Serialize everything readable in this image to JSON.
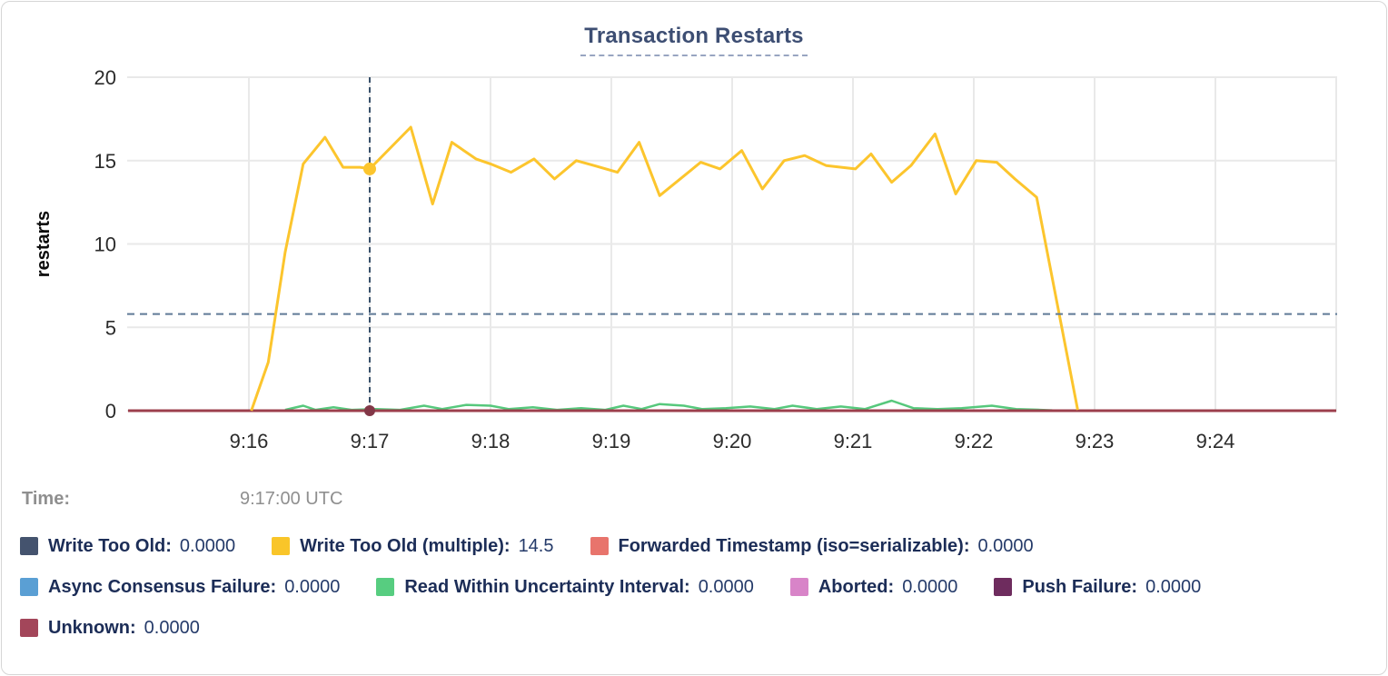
{
  "title": "Transaction Restarts",
  "tooltip": {
    "time_label": "Time:",
    "time_value": "9:17:00 UTC"
  },
  "chart_data": {
    "type": "line",
    "title": "Transaction Restarts",
    "xlabel": "",
    "ylabel": "restarts",
    "x_unit_note": "x values are minutes after 9:00 UTC",
    "xlim": [
      15,
      25
    ],
    "ylim": [
      0,
      20
    ],
    "grid": true,
    "y_ticks": [
      0,
      5,
      10,
      15,
      20
    ],
    "x_gridlines": [
      16,
      17,
      18,
      19,
      20,
      21,
      22,
      23,
      24,
      25
    ],
    "x_ticks": [
      {
        "t": 16,
        "label": "9:16"
      },
      {
        "t": 17,
        "label": "9:17"
      },
      {
        "t": 18,
        "label": "9:18"
      },
      {
        "t": 19,
        "label": "9:19"
      },
      {
        "t": 20,
        "label": "9:20"
      },
      {
        "t": 21,
        "label": "9:21"
      },
      {
        "t": 22,
        "label": "9:22"
      },
      {
        "t": 23,
        "label": "9:23"
      },
      {
        "t": 24,
        "label": "9:24"
      }
    ],
    "average_line": {
      "value": 5.8,
      "color": "#5f7a96",
      "style": "dashed"
    },
    "crosshair": {
      "t": 17,
      "time": "9:17:00 UTC",
      "color": "#38506a"
    },
    "highlighted_points": [
      {
        "series": "Write Too Old (multiple)",
        "t": 17,
        "value": 14.5,
        "color": "#fcc52d",
        "r": 7
      },
      {
        "series": "Unknown",
        "t": 17,
        "value": 0,
        "color": "#823747",
        "r": 6
      }
    ],
    "series": [
      {
        "name": "Write Too Old",
        "color": "#44536e",
        "width": 2,
        "value_at_crosshair": "0.0000",
        "points": [
          [
            15.0,
            0
          ],
          [
            25.0,
            0
          ]
        ]
      },
      {
        "name": "Forwarded Timestamp (iso=serializable)",
        "color": "#e8746c",
        "width": 2,
        "value_at_crosshair": "0.0000",
        "points": [
          [
            15.0,
            0
          ],
          [
            25.0,
            0
          ]
        ]
      },
      {
        "name": "Async Consensus Failure",
        "color": "#5a9fd4",
        "width": 2,
        "value_at_crosshair": "0.0000",
        "points": [
          [
            15.0,
            0
          ],
          [
            25.0,
            0
          ]
        ]
      },
      {
        "name": "Aborted",
        "color": "#d884c8",
        "width": 2,
        "value_at_crosshair": "0.0000",
        "points": [
          [
            15.0,
            0
          ],
          [
            25.0,
            0
          ]
        ]
      },
      {
        "name": "Push Failure",
        "color": "#6e2c5e",
        "width": 2,
        "value_at_crosshair": "0.0000",
        "points": [
          [
            15.0,
            0
          ],
          [
            25.0,
            0
          ]
        ]
      },
      {
        "name": "Read Within Uncertainty Interval",
        "color": "#56c87c",
        "width": 2.5,
        "value_at_crosshair": "0.0000",
        "points": [
          [
            16.3,
            0.05
          ],
          [
            16.45,
            0.3
          ],
          [
            16.55,
            0.05
          ],
          [
            16.7,
            0.2
          ],
          [
            16.85,
            0.05
          ],
          [
            17.05,
            0.1
          ],
          [
            17.25,
            0.05
          ],
          [
            17.45,
            0.3
          ],
          [
            17.6,
            0.1
          ],
          [
            17.8,
            0.35
          ],
          [
            18.0,
            0.3
          ],
          [
            18.15,
            0.1
          ],
          [
            18.35,
            0.2
          ],
          [
            18.55,
            0.05
          ],
          [
            18.75,
            0.15
          ],
          [
            18.95,
            0.05
          ],
          [
            19.1,
            0.3
          ],
          [
            19.25,
            0.1
          ],
          [
            19.4,
            0.4
          ],
          [
            19.6,
            0.3
          ],
          [
            19.75,
            0.1
          ],
          [
            19.95,
            0.15
          ],
          [
            20.15,
            0.25
          ],
          [
            20.35,
            0.1
          ],
          [
            20.5,
            0.3
          ],
          [
            20.7,
            0.1
          ],
          [
            20.9,
            0.25
          ],
          [
            21.1,
            0.1
          ],
          [
            21.32,
            0.6
          ],
          [
            21.5,
            0.15
          ],
          [
            21.7,
            0.1
          ],
          [
            21.9,
            0.15
          ],
          [
            22.15,
            0.3
          ],
          [
            22.35,
            0.1
          ],
          [
            22.55,
            0.05
          ],
          [
            22.65,
            0.02
          ]
        ]
      },
      {
        "name": "Unknown",
        "color": "#9c3f4c",
        "width": 3,
        "value_at_crosshair": "0.0000",
        "points": [
          [
            15.0,
            0
          ],
          [
            25.0,
            0
          ]
        ]
      },
      {
        "name": "Write Too Old (multiple)",
        "color": "#fcc52d",
        "width": 3,
        "value_at_crosshair": "14.5",
        "points": [
          [
            16.02,
            0
          ],
          [
            16.16,
            2.9
          ],
          [
            16.3,
            9.5
          ],
          [
            16.45,
            14.8
          ],
          [
            16.63,
            16.4
          ],
          [
            16.78,
            14.6
          ],
          [
            16.92,
            14.6
          ],
          [
            17.0,
            14.5
          ],
          [
            17.34,
            17.0
          ],
          [
            17.52,
            12.4
          ],
          [
            17.68,
            16.1
          ],
          [
            17.88,
            15.1
          ],
          [
            18.0,
            14.8
          ],
          [
            18.17,
            14.3
          ],
          [
            18.36,
            15.1
          ],
          [
            18.53,
            13.9
          ],
          [
            18.71,
            15.0
          ],
          [
            18.86,
            14.7
          ],
          [
            19.05,
            14.3
          ],
          [
            19.23,
            16.1
          ],
          [
            19.4,
            12.9
          ],
          [
            19.74,
            14.9
          ],
          [
            19.9,
            14.5
          ],
          [
            20.08,
            15.6
          ],
          [
            20.25,
            13.3
          ],
          [
            20.43,
            15.0
          ],
          [
            20.6,
            15.3
          ],
          [
            20.78,
            14.7
          ],
          [
            21.02,
            14.5
          ],
          [
            21.15,
            15.4
          ],
          [
            21.32,
            13.7
          ],
          [
            21.48,
            14.7
          ],
          [
            21.68,
            16.6
          ],
          [
            21.85,
            13.0
          ],
          [
            22.02,
            15.0
          ],
          [
            22.19,
            14.9
          ],
          [
            22.34,
            13.9
          ],
          [
            22.52,
            12.8
          ],
          [
            22.86,
            0.05
          ]
        ]
      }
    ]
  },
  "legend_rows": [
    [
      {
        "label": "Write Too Old",
        "value": "0.0000",
        "color": "#44536e"
      },
      {
        "label": "Write Too Old (multiple)",
        "value": "14.5",
        "color": "#f9c529"
      },
      {
        "label": "Forwarded Timestamp (iso=serializable)",
        "value": "0.0000",
        "color": "#e8746c"
      }
    ],
    [
      {
        "label": "Async Consensus Failure",
        "value": "0.0000",
        "color": "#5a9fd4"
      },
      {
        "label": "Read Within Uncertainty Interval",
        "value": "0.0000",
        "color": "#57cd80"
      },
      {
        "label": "Aborted",
        "value": "0.0000",
        "color": "#d884c8"
      },
      {
        "label": "Push Failure",
        "value": "0.0000",
        "color": "#6e2c5e"
      }
    ],
    [
      {
        "label": "Unknown",
        "value": "0.0000",
        "color": "#a3465a"
      }
    ]
  ]
}
